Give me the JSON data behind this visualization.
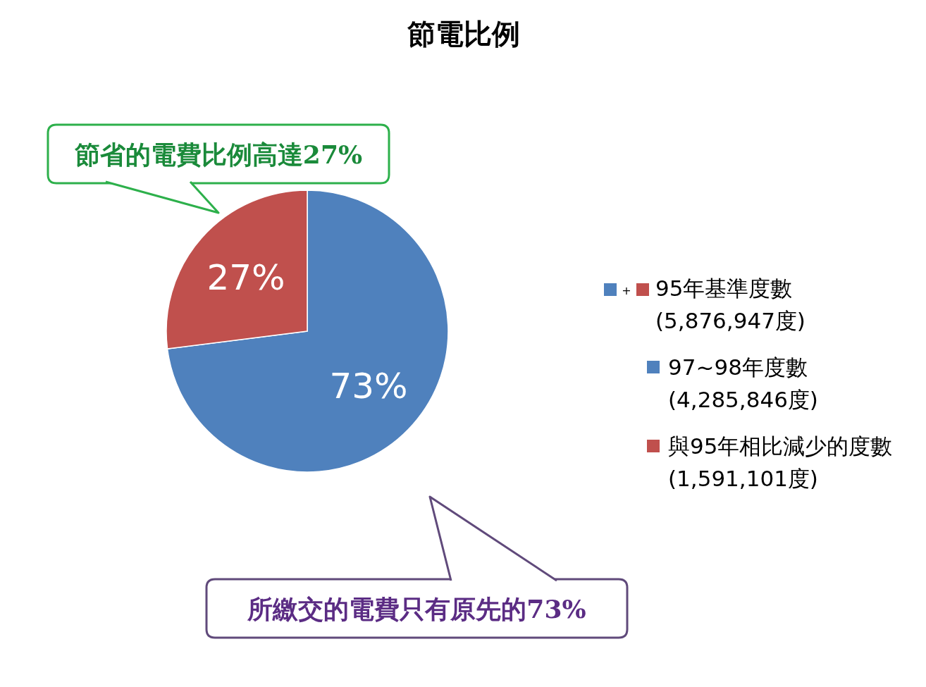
{
  "chart_data": {
    "type": "pie",
    "title": "節電比例",
    "categories": [
      "97~98年度數(4,285,846度)",
      "與95年相比減少的度數(1,591,101度)"
    ],
    "values": [
      73,
      27
    ],
    "colors": [
      "#4f81bd",
      "#c0504d"
    ],
    "value_labels": [
      "73%",
      "27%"
    ],
    "legend": "right",
    "annotations": [
      "節省的電費比例高達27%",
      "所繳交的電費只有原先的73%",
      "+ 95年基準度數(5,876,947度)"
    ]
  }
}
